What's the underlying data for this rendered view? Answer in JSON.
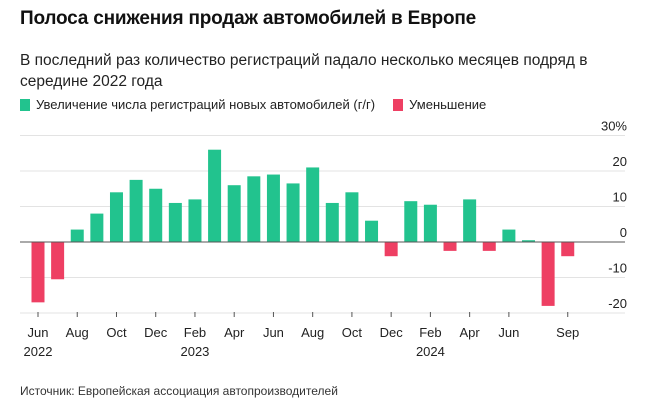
{
  "header": {
    "title": "Полоса снижения продаж автомобилей в Европе",
    "subtitle": "В последний раз количество регистраций падало несколько месяцев подряд в середине 2022 года"
  },
  "legend": {
    "increase_label": "Увеличение числа регистраций новых автомобилей (г/г)",
    "decrease_label": "Уменьшение",
    "increase_color": "#22c38e",
    "decrease_color": "#ee3f63"
  },
  "source": "Источник: Европейская ассоциация автопроизводителей",
  "chart_data": {
    "type": "bar",
    "categories": [
      "Jun 2022",
      "Jul 2022",
      "Aug 2022",
      "Sep 2022",
      "Oct 2022",
      "Nov 2022",
      "Dec 2022",
      "Jan 2023",
      "Feb 2023",
      "Mar 2023",
      "Apr 2023",
      "May 2023",
      "Jun 2023",
      "Jul 2023",
      "Aug 2023",
      "Sep 2023",
      "Oct 2023",
      "Nov 2023",
      "Dec 2023",
      "Jan 2024",
      "Feb 2024",
      "Mar 2024",
      "Apr 2024",
      "May 2024",
      "Jun 2024",
      "Jul 2024",
      "Aug 2024",
      "Sep 2024"
    ],
    "values": [
      -17,
      -10.5,
      3.5,
      8,
      14,
      17.5,
      15,
      11,
      12,
      26,
      16,
      18.5,
      19,
      16.5,
      21,
      11,
      14,
      6,
      -4,
      11.5,
      10.5,
      -2.5,
      12,
      -2.5,
      3.5,
      0.5,
      -18,
      -4
    ],
    "yticks": [
      "30%",
      "20",
      "10",
      "0",
      "-10",
      "-20"
    ],
    "ytick_values": [
      30,
      20,
      10,
      0,
      -10,
      -20
    ],
    "ylim": [
      -23,
      33
    ],
    "xtick_labels": [
      {
        "index": 0,
        "month": "Jun",
        "year": "2022"
      },
      {
        "index": 2,
        "month": "Aug",
        "year": ""
      },
      {
        "index": 4,
        "month": "Oct",
        "year": ""
      },
      {
        "index": 6,
        "month": "Dec",
        "year": ""
      },
      {
        "index": 8,
        "month": "Feb",
        "year": "2023"
      },
      {
        "index": 10,
        "month": "Apr",
        "year": ""
      },
      {
        "index": 12,
        "month": "Jun",
        "year": ""
      },
      {
        "index": 14,
        "month": "Aug",
        "year": ""
      },
      {
        "index": 16,
        "month": "Oct",
        "year": ""
      },
      {
        "index": 18,
        "month": "Dec",
        "year": ""
      },
      {
        "index": 20,
        "month": "Feb",
        "year": "2024"
      },
      {
        "index": 22,
        "month": "Apr",
        "year": ""
      },
      {
        "index": 24,
        "month": "Jun",
        "year": ""
      },
      {
        "index": 27,
        "month": "Sep",
        "year": ""
      }
    ],
    "grid": true,
    "legend_position": "top-left"
  }
}
